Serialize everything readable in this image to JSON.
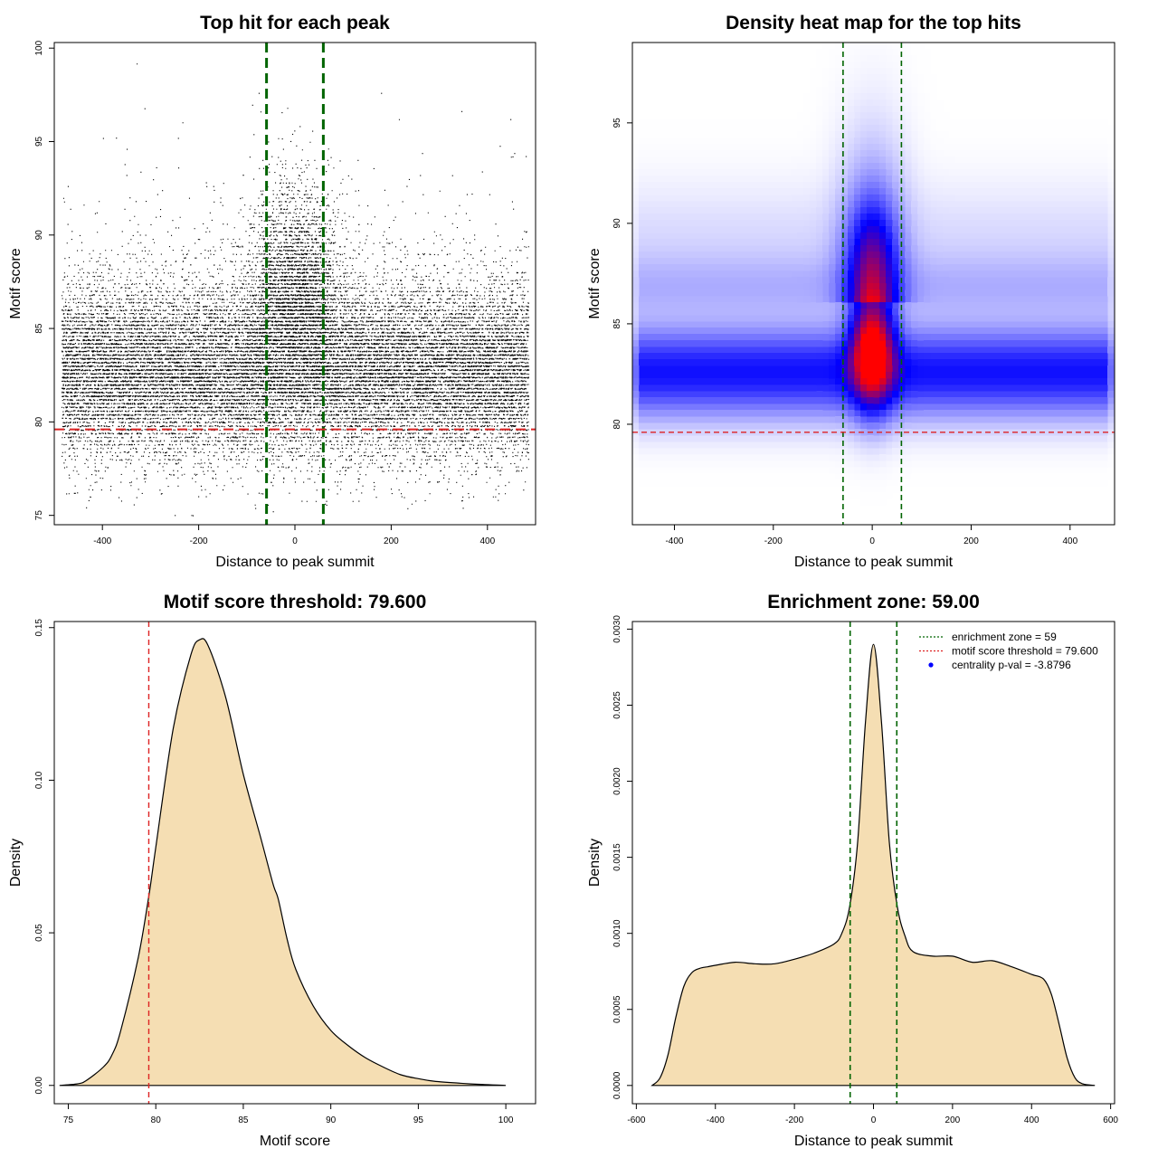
{
  "chart_data": [
    {
      "type": "scatter",
      "title": "Top hit for each peak",
      "xlabel": "Distance to peak summit",
      "ylabel": "Motif score",
      "xlim": [
        -500,
        500
      ],
      "ylim": [
        74.5,
        100.3
      ],
      "xticks": [
        -400,
        -200,
        0,
        200,
        400
      ],
      "yticks": [
        75,
        80,
        85,
        90,
        95,
        100
      ],
      "x_tick_labels": [
        "-400",
        "-200",
        "0",
        "200",
        "400"
      ],
      "y_tick_labels": [
        "75",
        "80",
        "85",
        "90",
        "95",
        "100"
      ],
      "vlines": [
        -59,
        59
      ],
      "vline_color": "#006400",
      "hline": 79.6,
      "hline_color": "#dd2222",
      "point_color": "#000000",
      "distribution": {
        "x_range": [
          -485,
          485
        ],
        "background_score_center": 82.7,
        "central_score_center": 86.0,
        "central_spread": 48
      }
    },
    {
      "type": "heatmap",
      "title": "Density heat map for the top hits",
      "xlabel": "Distance to peak summit",
      "ylabel": "Motif score",
      "xlim": [
        -485,
        490
      ],
      "ylim": [
        75,
        99
      ],
      "xticks": [
        -400,
        -200,
        0,
        200,
        400
      ],
      "yticks": [
        80,
        85,
        90,
        95
      ],
      "x_tick_labels": [
        "-400",
        "-200",
        "0",
        "200",
        "400"
      ],
      "y_tick_labels": [
        "80",
        "85",
        "90",
        "95"
      ],
      "vlines": [
        -59,
        59
      ],
      "vline_color": "#006400",
      "hline": 79.6,
      "hline_color": "#dd2222",
      "colors": {
        "low": "#ffffff",
        "mid": "#0000ff",
        "high": "#ff0000"
      }
    },
    {
      "type": "area",
      "title": "Motif score threshold: 79.600",
      "xlabel": "Motif score",
      "ylabel": "Density",
      "xlim": [
        74.2,
        101.7
      ],
      "ylim": [
        -0.006,
        0.152
      ],
      "xticks": [
        75,
        80,
        85,
        90,
        95,
        100
      ],
      "yticks": [
        0,
        0.05,
        0.1,
        0.15
      ],
      "x_tick_labels": [
        "75",
        "80",
        "85",
        "90",
        "95",
        "100"
      ],
      "y_tick_labels": [
        "0.00",
        "0.05",
        "0.10",
        "0.15"
      ],
      "vline": 79.6,
      "vline_color": "#dd2222",
      "fill_color": "#f5deb3",
      "x": [
        74.5,
        75.5,
        76,
        77,
        77.5,
        78,
        79,
        79.6,
        80,
        81,
        82,
        82.5,
        83,
        84,
        85,
        86,
        86.7,
        87,
        87.5,
        88,
        89,
        90,
        91,
        92,
        93,
        94,
        95,
        96,
        98,
        100
      ],
      "values": [
        0,
        0.0005,
        0.0015,
        0.006,
        0.01,
        0.018,
        0.042,
        0.062,
        0.078,
        0.117,
        0.141,
        0.146,
        0.144,
        0.127,
        0.102,
        0.081,
        0.066,
        0.061,
        0.048,
        0.038,
        0.026,
        0.018,
        0.013,
        0.009,
        0.006,
        0.0035,
        0.0022,
        0.0013,
        0.0005,
        0
      ]
    },
    {
      "type": "area",
      "title": "Enrichment zone: 59.00",
      "xlabel": "Distance to peak summit",
      "ylabel": "Density",
      "xlim": [
        -610,
        610
      ],
      "ylim": [
        -0.00012,
        0.00305
      ],
      "xticks": [
        -600,
        -400,
        -200,
        0,
        200,
        400,
        600
      ],
      "yticks": [
        0,
        0.0005,
        0.001,
        0.0015,
        0.002,
        0.0025,
        0.003
      ],
      "x_tick_labels": [
        "-600",
        "-400",
        "-200",
        "0",
        "200",
        "400",
        "600"
      ],
      "y_tick_labels": [
        "0.0000",
        "0.0005",
        "0.0010",
        "0.0015",
        "0.0020",
        "0.0025",
        "0.0030"
      ],
      "vlines": [
        -59,
        59
      ],
      "vline_color": "#006400",
      "fill_color": "#f5deb3",
      "x": [
        -560,
        -540,
        -520,
        -500,
        -480,
        -460,
        -440,
        -420,
        -400,
        -350,
        -300,
        -250,
        -200,
        -150,
        -100,
        -80,
        -60,
        -40,
        -20,
        0,
        20,
        40,
        60,
        80,
        100,
        150,
        200,
        250,
        300,
        350,
        400,
        430,
        450,
        470,
        490,
        510,
        530,
        560
      ],
      "values": [
        0,
        5e-05,
        0.0002,
        0.00045,
        0.00065,
        0.00074,
        0.00077,
        0.00078,
        0.00079,
        0.00081,
        0.0008,
        0.0008,
        0.00083,
        0.00087,
        0.00093,
        0.001,
        0.00118,
        0.0016,
        0.0024,
        0.0029,
        0.0024,
        0.0016,
        0.00118,
        0.00098,
        0.00088,
        0.00085,
        0.00085,
        0.00081,
        0.00082,
        0.00078,
        0.00073,
        0.0007,
        0.0006,
        0.0004,
        0.00018,
        5e-05,
        1e-05,
        0
      ],
      "legend": {
        "position": "top-right",
        "entries": [
          {
            "label": "enrichment zone = 59",
            "color": "#006400",
            "kind": "line"
          },
          {
            "label": "motif score threshold = 79.600",
            "color": "#dd2222",
            "kind": "line"
          },
          {
            "label": "centrality p-val = -3.8796",
            "color": "#0000ff",
            "kind": "point"
          }
        ]
      }
    }
  ]
}
